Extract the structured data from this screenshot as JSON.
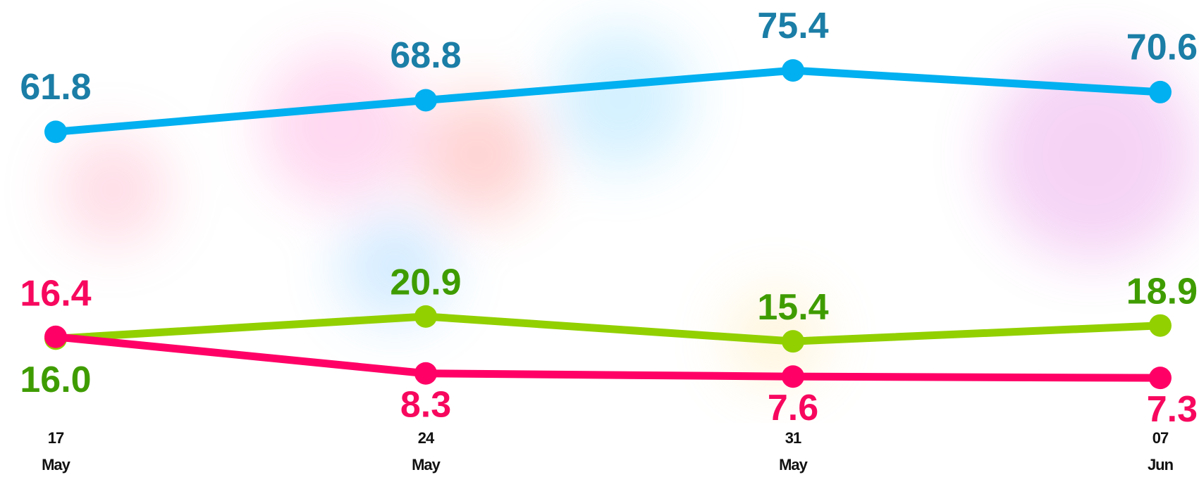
{
  "chart_data": {
    "type": "line",
    "x": [
      "17\nMay",
      "24\nMay",
      "31\nMay",
      "07\nJun"
    ],
    "ylim": [
      0,
      91
    ],
    "series": [
      {
        "color": "#00b0f0",
        "label_color": "#1b7ea6",
        "values": [
          61.8,
          68.8,
          75.4,
          70.6
        ],
        "value_labels": [
          "61.8",
          "68.8",
          "75.4",
          "70.6"
        ]
      },
      {
        "color": "#92d000",
        "label_color": "#3f9c00",
        "values": [
          16.0,
          20.9,
          15.4,
          18.9
        ],
        "value_labels": [
          "16.0",
          "20.9",
          "15.4",
          "18.9"
        ]
      },
      {
        "color": "#ff0066",
        "label_color": "#f7085e",
        "values": [
          16.4,
          8.3,
          7.6,
          7.3
        ],
        "value_labels": [
          "16.4",
          "8.3",
          "7.6",
          "7.3"
        ]
      }
    ]
  }
}
